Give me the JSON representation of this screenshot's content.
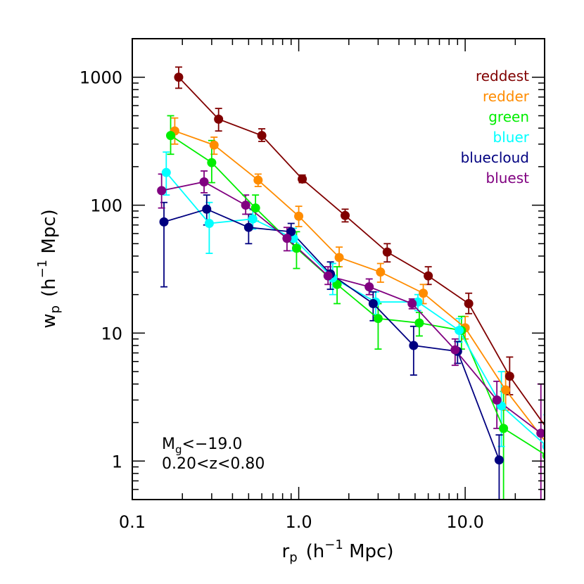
{
  "chart_data": {
    "type": "line",
    "xscale": "log",
    "yscale": "log",
    "xlim": [
      0.1,
      30
    ],
    "ylim": [
      0.5,
      2000
    ],
    "xlabel": {
      "main": "r",
      "sub": "p",
      "pre": "(h",
      "sup": "−1",
      "post": " Mpc)"
    },
    "ylabel": {
      "main": "w",
      "sub": "p",
      "pre": "(h",
      "sup": "−1",
      "post": " Mpc)"
    },
    "xticks": [
      {
        "value": 0.1,
        "label": "0.1"
      },
      {
        "value": 1,
        "label": "1.0"
      },
      {
        "value": 10,
        "label": "10.0"
      }
    ],
    "yticks": [
      {
        "value": 1,
        "label": "1"
      },
      {
        "value": 10,
        "label": "10"
      },
      {
        "value": 100,
        "label": "100"
      },
      {
        "value": 1000,
        "label": "1000"
      }
    ],
    "legend_position": "top-right",
    "annotations": {
      "line1_main": "M",
      "line1_sub": "g",
      "line1_rest": "<−19.0",
      "line2": "0.20<z<0.80"
    },
    "series": [
      {
        "name": "reddest",
        "color": "#800000",
        "x": [
          0.19,
          0.33,
          0.6,
          1.05,
          1.9,
          3.4,
          6.0,
          10.5,
          18.5,
          33
        ],
        "y": [
          1000,
          470,
          350,
          160,
          83,
          43,
          28,
          17,
          4.6,
          1.6
        ],
        "err_lo": [
          820,
          380,
          315,
          150,
          74,
          36,
          24,
          14.2,
          3.3,
          0.8
        ],
        "err_hi": [
          1200,
          570,
          395,
          172,
          93,
          50,
          33,
          20.5,
          6.5,
          2.6
        ]
      },
      {
        "name": "redder",
        "color": "#ff8c00",
        "x": [
          0.18,
          0.31,
          0.57,
          1.0,
          1.75,
          3.1,
          5.6,
          10.0,
          17.5,
          32
        ],
        "y": [
          380,
          295,
          157,
          82,
          39,
          30,
          20.5,
          11.0,
          3.6,
          1.3
        ],
        "err_lo": [
          300,
          250,
          140,
          68,
          33,
          25,
          17,
          9.0,
          2.5,
          0.6
        ],
        "err_hi": [
          480,
          340,
          175,
          98,
          47,
          35,
          24,
          13.5,
          5.0,
          2.2
        ]
      },
      {
        "name": "green",
        "color": "#00ee00",
        "x": [
          0.17,
          0.3,
          0.55,
          0.97,
          1.7,
          3.0,
          5.3,
          9.5,
          17.0,
          31
        ],
        "y": [
          350,
          215,
          95,
          46,
          24,
          13,
          12,
          10.5,
          1.8,
          1.1
        ],
        "err_lo": [
          250,
          150,
          75,
          32,
          17,
          7.5,
          9.5,
          7.5,
          0.5,
          0.4
        ],
        "err_hi": [
          500,
          320,
          120,
          62,
          33,
          17,
          14.5,
          13.5,
          3.5,
          2.0
        ]
      },
      {
        "name": "bluer",
        "color": "#00ffff",
        "x": [
          0.16,
          0.29,
          0.53,
          0.93,
          1.6,
          2.9,
          5.2,
          9.2,
          16.5,
          31
        ],
        "y": [
          180,
          72,
          78,
          55,
          27,
          17.5,
          17.5,
          10.5,
          2.7,
          1.3
        ],
        "err_lo": [
          120,
          42,
          65,
          44,
          20,
          14,
          15,
          8.5,
          1.3,
          0.5
        ],
        "err_hi": [
          260,
          105,
          92,
          66,
          35,
          21,
          20,
          13,
          5.0,
          2.3
        ]
      },
      {
        "name": "bluecloud",
        "color": "#000080",
        "x": [
          0.155,
          0.28,
          0.5,
          0.9,
          1.55,
          2.8,
          4.9,
          9.0,
          16.0
        ],
        "y": [
          74,
          93,
          67,
          62,
          29,
          17,
          8.0,
          7.2,
          1.02
        ],
        "err_lo": [
          23,
          70,
          50,
          52,
          22,
          12.5,
          4.7,
          5.8,
          0.4
        ],
        "err_hi": [
          105,
          120,
          85,
          72,
          36,
          21,
          11.3,
          8.6,
          1.6
        ]
      },
      {
        "name": "bluest",
        "color": "#800080",
        "x": [
          0.15,
          0.27,
          0.48,
          0.85,
          1.5,
          2.65,
          4.8,
          8.7,
          15.5,
          28.5
        ],
        "y": [
          130,
          152,
          100,
          55,
          28,
          23,
          17.0,
          7.4,
          3.0,
          1.65
        ],
        "err_lo": [
          95,
          125,
          85,
          44,
          24,
          20,
          15.5,
          5.6,
          1.8,
          0.5
        ],
        "err_hi": [
          175,
          185,
          120,
          67,
          33,
          26.5,
          18.5,
          9.0,
          4.2,
          4.0
        ]
      }
    ]
  }
}
